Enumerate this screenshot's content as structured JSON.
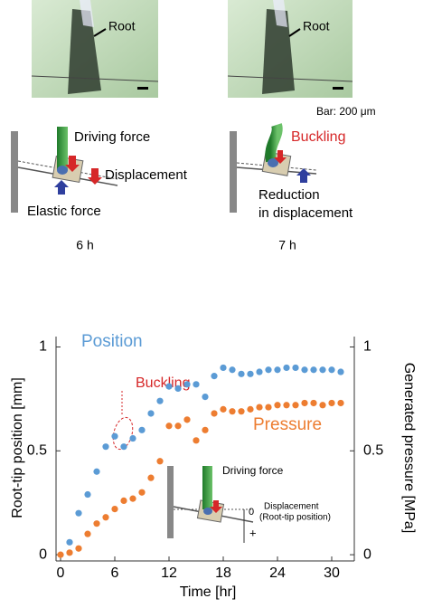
{
  "top_panels": [
    {
      "root_label": "Root",
      "labels": [
        "Driving force",
        "Displacement",
        "Elastic force"
      ],
      "time": "6 h"
    },
    {
      "root_label": "Root",
      "labels": [
        "Buckling",
        "Reduction",
        "in displacement"
      ],
      "time": "7 h",
      "scale_bar": "Bar: 200 μm"
    }
  ],
  "chart_data": {
    "type": "scatter",
    "x_label": "Time [hr]",
    "y_label": "Root-tip position [mm]",
    "y2_label": "Generated pressure [MPa]",
    "x": [
      0,
      1,
      2,
      3,
      4,
      5,
      6,
      7,
      8,
      9,
      10,
      11,
      12,
      13,
      14,
      15,
      16,
      17,
      18,
      19,
      20,
      21,
      22,
      23,
      24,
      25,
      26,
      27,
      28,
      29,
      30,
      31
    ],
    "series": [
      {
        "name": "Position",
        "color": "#5b9bd5",
        "values": [
          null,
          0.06,
          0.2,
          0.29,
          0.4,
          0.52,
          0.57,
          0.52,
          0.56,
          0.6,
          0.68,
          0.74,
          0.81,
          0.8,
          0.82,
          0.82,
          0.76,
          0.86,
          0.9,
          0.89,
          0.87,
          0.87,
          0.88,
          0.89,
          0.89,
          0.9,
          0.9,
          0.89,
          0.89,
          0.89,
          0.89,
          0.88
        ]
      },
      {
        "name": "Pressure",
        "color": "#ed7d31",
        "axis": "y2",
        "values": [
          0,
          0.01,
          0.03,
          0.1,
          0.15,
          0.18,
          0.22,
          0.26,
          0.27,
          0.3,
          0.37,
          0.45,
          0.62,
          0.62,
          0.65,
          0.55,
          0.6,
          0.68,
          0.7,
          0.69,
          0.69,
          0.7,
          0.71,
          0.71,
          0.72,
          0.72,
          0.72,
          0.73,
          0.73,
          0.72,
          0.73,
          0.73
        ]
      }
    ],
    "xlim": [
      -0.5,
      32.5
    ],
    "xticks": [
      0,
      6,
      12,
      18,
      24,
      30
    ],
    "ylim": [
      -0.03,
      1.05
    ],
    "yticks": [
      0,
      0.5,
      1
    ],
    "y2lim": [
      -0.03,
      1.05
    ],
    "y2ticks": [
      0,
      0.5,
      1
    ],
    "annotation": "Buckling",
    "inset": {
      "label": "Driving force",
      "zero": "0",
      "displacement": "Displacement",
      "sub": "(Root-tip position)",
      "plus": "+"
    }
  }
}
